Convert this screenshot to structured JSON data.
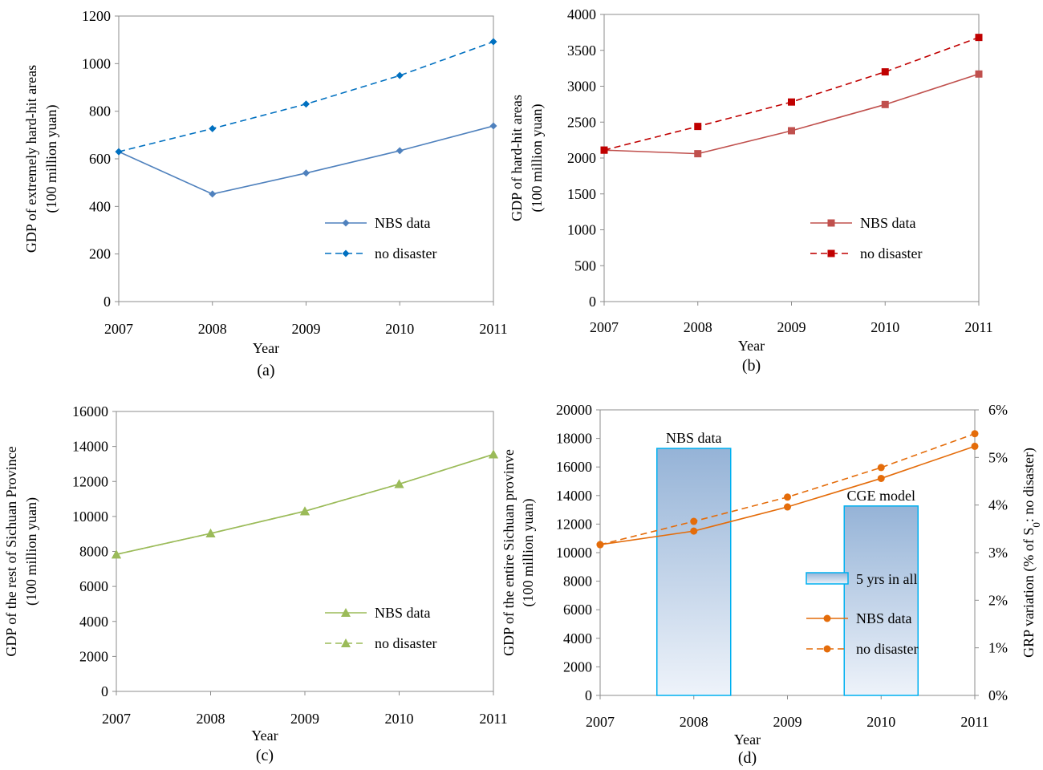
{
  "chart_data": [
    {
      "panel": "(a)",
      "type": "line",
      "categories": [
        "2007",
        "2008",
        "2009",
        "2010",
        "2011"
      ],
      "ylabel": [
        "GDP of extremely hard-hit areas",
        "(100 million yuan)"
      ],
      "xlabel": "Year",
      "ylim": [
        0,
        1200
      ],
      "yticks": [
        0,
        200,
        400,
        600,
        800,
        1000,
        1200
      ],
      "ytick_labels": [
        "0",
        "200",
        "400",
        "600",
        "800",
        "1000",
        "1200"
      ],
      "legend_position": "bottom-right",
      "series": [
        {
          "name": "NBS data",
          "values": [
            630,
            452,
            540,
            634,
            738
          ],
          "color": "#4F81BD",
          "style": "solid",
          "marker": "diamond"
        },
        {
          "name": "no disaster",
          "values": [
            630,
            727,
            830,
            950,
            1092
          ],
          "color": "#0070C0",
          "style": "dashed",
          "marker": "diamond"
        }
      ]
    },
    {
      "panel": "(b)",
      "type": "line",
      "categories": [
        "2007",
        "2008",
        "2009",
        "2010",
        "2011"
      ],
      "ylabel": [
        "GDP of hard-hit areas",
        "(100 million yuan)"
      ],
      "xlabel": "Year",
      "ylim": [
        0,
        4000
      ],
      "yticks": [
        0,
        500,
        1000,
        1500,
        2000,
        2500,
        3000,
        3500,
        4000
      ],
      "ytick_labels": [
        "0",
        "500",
        "1000",
        "1500",
        "2000",
        "2500",
        "3000",
        "3500",
        "4000"
      ],
      "legend_position": "bottom-right",
      "series": [
        {
          "name": "NBS data",
          "values": [
            2110,
            2060,
            2380,
            2745,
            3170
          ],
          "color": "#C0504D",
          "style": "solid",
          "marker": "square"
        },
        {
          "name": "no disaster",
          "values": [
            2110,
            2440,
            2780,
            3200,
            3680
          ],
          "color": "#C00000",
          "style": "dashed",
          "marker": "square"
        }
      ]
    },
    {
      "panel": "(c)",
      "type": "line",
      "categories": [
        "2007",
        "2008",
        "2009",
        "2010",
        "2011"
      ],
      "ylabel": [
        "GDP of the rest of Sichuan Province",
        "(100 million yuan)"
      ],
      "xlabel": "Year",
      "ylim": [
        0,
        16000
      ],
      "yticks": [
        0,
        2000,
        4000,
        6000,
        8000,
        10000,
        12000,
        14000,
        16000
      ],
      "ytick_labels": [
        "0",
        "2000",
        "4000",
        "6000",
        "8000",
        "10000",
        "12000",
        "14000",
        "16000"
      ],
      "legend_position": "bottom-right",
      "series": [
        {
          "name": "NBS data",
          "values": [
            7830,
            9030,
            10300,
            11850,
            13550
          ],
          "color": "#9BBB59",
          "style": "solid",
          "marker": "triangle"
        },
        {
          "name": "no disaster",
          "values": [
            7830,
            9030,
            10300,
            11850,
            13550
          ],
          "color": "#9BBB59",
          "style": "dashed",
          "marker": "triangle"
        }
      ]
    },
    {
      "panel": "(d)",
      "type": "line",
      "categories": [
        "2007",
        "2008",
        "2009",
        "2010",
        "2011"
      ],
      "ylabel": [
        "GDP of the entire Sichuan provinve",
        "(100 million yuan)"
      ],
      "ylabel_right": "GRP variation (% of S",
      "ylabel_right_sub": "0",
      "ylabel_right_tail": ": no disaster)",
      "xlabel": "Year",
      "ylim": [
        0,
        20000
      ],
      "yticks": [
        0,
        2000,
        4000,
        6000,
        8000,
        10000,
        12000,
        14000,
        16000,
        18000,
        20000
      ],
      "ytick_labels": [
        "0",
        "2000",
        "4000",
        "6000",
        "8000",
        "10000",
        "12000",
        "14000",
        "16000",
        "18000",
        "20000"
      ],
      "ylim_right": [
        0,
        6
      ],
      "yticks_right": [
        0,
        1,
        2,
        3,
        4,
        5,
        6
      ],
      "ytick_labels_right": [
        "0%",
        "1%",
        "2%",
        "3%",
        "4%",
        "5%",
        "6%"
      ],
      "legend_position": "bottom-right",
      "bars": {
        "name": "5 yrs in all",
        "positions": [
          "2008",
          "2010"
        ],
        "values": [
          5.19,
          3.98
        ],
        "labels": [
          "NBS data",
          "CGE model"
        ],
        "axis": "right",
        "color_top": "#95B3D7",
        "color_bottom": "#EEF3FA",
        "edge_color": "#00B0F0"
      },
      "series": [
        {
          "name": "NBS data",
          "values": [
            10560,
            11510,
            13200,
            15200,
            17450
          ],
          "color": "#E46C0A",
          "style": "solid",
          "marker": "circle"
        },
        {
          "name": "no disaster",
          "values": [
            10560,
            12190,
            13890,
            15960,
            18330
          ],
          "color": "#E46C0A",
          "style": "dashed",
          "marker": "circle"
        }
      ]
    }
  ]
}
